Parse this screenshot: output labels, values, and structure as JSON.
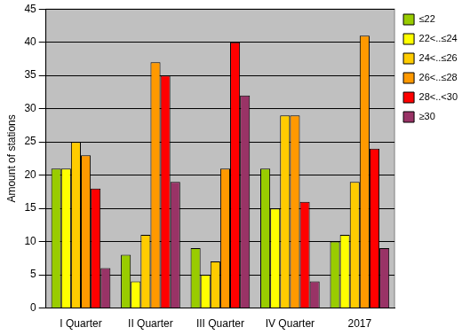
{
  "chart_data": {
    "type": "bar",
    "y_label": "Amount of stations",
    "categories": [
      "I Quarter",
      "II Quarter",
      "III Quarter",
      "IV Quarter",
      "2017"
    ],
    "series": [
      {
        "name": "≤22",
        "color": "#99cc00",
        "values": [
          21,
          8,
          9,
          21,
          10
        ]
      },
      {
        "name": "22<..≤24",
        "color": "#ffff00",
        "values": [
          21,
          4,
          5,
          15,
          11
        ]
      },
      {
        "name": "24<..≤26",
        "color": "#ffcc00",
        "values": [
          25,
          11,
          7,
          29,
          19
        ]
      },
      {
        "name": "26<..≤28",
        "color": "#ff9900",
        "values": [
          23,
          37,
          21,
          29,
          41
        ]
      },
      {
        "name": "28<..<30",
        "color": "#ff0000",
        "values": [
          18,
          35,
          40,
          16,
          24
        ]
      },
      {
        "name": "≥30",
        "color": "#993366",
        "values": [
          6,
          19,
          32,
          4,
          9
        ]
      }
    ],
    "ylim": [
      0,
      45
    ],
    "yticks": [
      0,
      5,
      10,
      15,
      20,
      25,
      30,
      35,
      40,
      45
    ],
    "grid": true,
    "legend": "right"
  }
}
